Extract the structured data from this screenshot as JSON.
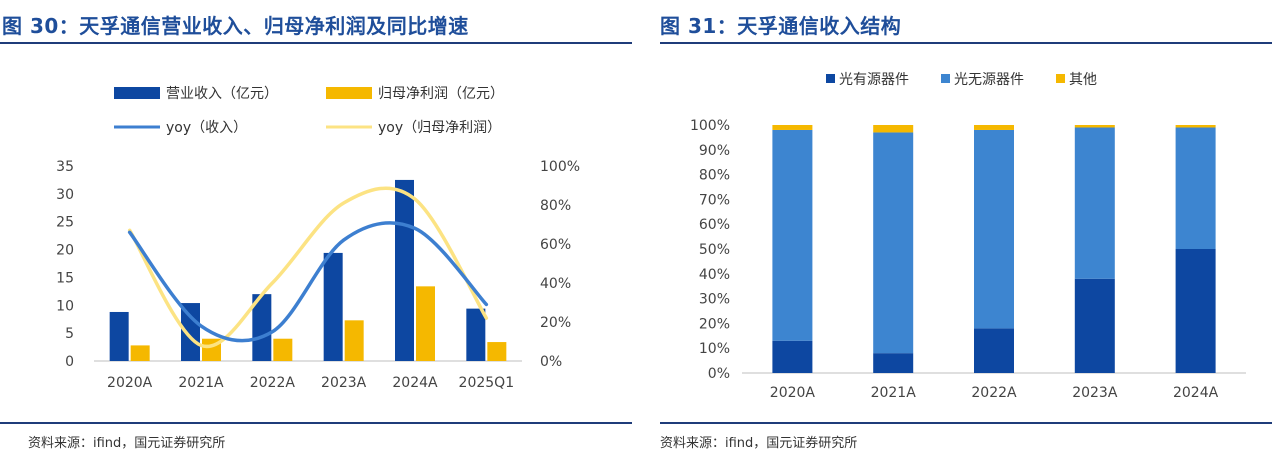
{
  "left_panel": {
    "title": "图 30：天孚通信营业收入、归母净利润及同比增速",
    "source": "资料来源：ifind，国元证券研究所"
  },
  "right_panel": {
    "title": "图 31：天孚通信收入结构",
    "source": "资料来源：ifind，国元证券研究所"
  },
  "chart_data": [
    {
      "type": "bar",
      "categories": [
        "2020A",
        "2021A",
        "2022A",
        "2023A",
        "2024A",
        "2025Q1"
      ],
      "series": [
        {
          "name": "营业收入（亿元）",
          "kind": "bar",
          "axis": "left",
          "color": "#0d47a1",
          "values": [
            8.8,
            10.4,
            12.0,
            19.4,
            32.5,
            9.4
          ]
        },
        {
          "name": "归母净利润（亿元）",
          "kind": "bar",
          "axis": "left",
          "color": "#f5b800",
          "values": [
            2.8,
            4.0,
            4.0,
            7.3,
            13.4,
            3.4
          ]
        },
        {
          "name": "yoy（收入）",
          "kind": "line",
          "axis": "right",
          "color": "#3d7fd0",
          "values": [
            0.66,
            0.18,
            0.15,
            0.62,
            0.68,
            0.29
          ]
        },
        {
          "name": "yoy（归母净利润）",
          "kind": "line",
          "axis": "right",
          "color": "#fce383",
          "values": [
            0.67,
            0.08,
            0.4,
            0.81,
            0.83,
            0.22
          ]
        }
      ],
      "ylim_left": [
        0,
        35
      ],
      "yticks_left": [
        "0",
        "5",
        "10",
        "15",
        "20",
        "25",
        "30",
        "35"
      ],
      "ylim_right": [
        0,
        1
      ],
      "yticks_right": [
        "0%",
        "20%",
        "40%",
        "60%",
        "80%",
        "100%"
      ],
      "legend_placement": "top",
      "grid": false
    },
    {
      "type": "bar",
      "stacked": true,
      "categories": [
        "2020A",
        "2021A",
        "2022A",
        "2023A",
        "2024A"
      ],
      "series": [
        {
          "name": "光有源器件",
          "color": "#0d47a1",
          "values": [
            0.13,
            0.08,
            0.18,
            0.38,
            0.5
          ]
        },
        {
          "name": "光无源器件",
          "color": "#3d85d0",
          "values": [
            0.85,
            0.89,
            0.8,
            0.61,
            0.49
          ]
        },
        {
          "name": "其他",
          "color": "#f5b800",
          "values": [
            0.02,
            0.03,
            0.02,
            0.01,
            0.01
          ]
        }
      ],
      "ylim": [
        0,
        1
      ],
      "yticks": [
        "0%",
        "10%",
        "20%",
        "30%",
        "40%",
        "50%",
        "60%",
        "70%",
        "80%",
        "90%",
        "100%"
      ],
      "legend_placement": "top",
      "grid": false
    }
  ]
}
